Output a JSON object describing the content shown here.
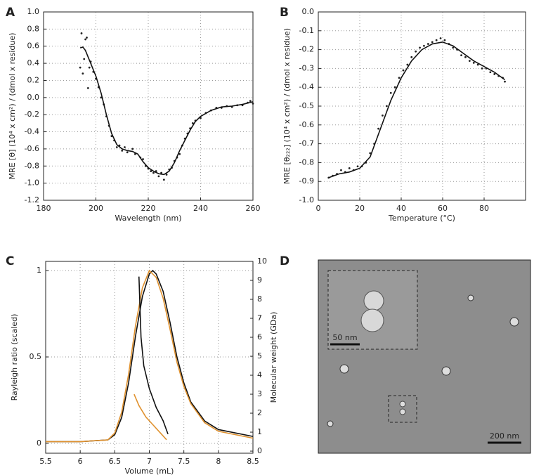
{
  "chart_data": [
    {
      "type": "line",
      "panel_label": "A",
      "xlabel": "Wavelength (nm)",
      "ylabel": "MRE [θ] (10⁴ x cm²) / (dmol x residue)",
      "xlim": [
        180,
        260
      ],
      "xticks": [
        180,
        200,
        220,
        240,
        260
      ],
      "ylim": [
        -1.2,
        1.0
      ],
      "yticks": [
        {
          "value": 1.0,
          "label": "1.0"
        },
        0.8,
        0.6,
        0.4,
        0.2,
        {
          "value": 0.0,
          "label": "0.0"
        },
        -0.2,
        -0.4,
        -0.6,
        -0.8,
        {
          "value": -1.0,
          "label": "-1.0"
        },
        -1.2
      ],
      "grid": true,
      "frame": true,
      "series": [
        {
          "style": "points",
          "color": "#222222",
          "x": [
            194,
            194.5,
            195,
            195.5,
            196,
            196.5,
            197,
            197.5,
            198,
            199,
            200,
            201,
            202,
            203,
            204,
            205,
            206,
            207,
            208,
            209,
            210,
            211,
            212,
            214,
            215,
            217,
            218,
            219,
            220,
            221,
            222,
            223,
            224,
            225,
            226,
            227,
            228,
            229,
            230,
            231,
            232,
            233,
            234,
            235,
            236,
            237,
            238,
            240,
            242,
            244,
            246,
            248,
            250,
            252,
            254,
            256,
            258,
            259,
            260
          ],
          "values": [
            0.35,
            0.75,
            0.28,
            0.45,
            0.68,
            0.7,
            0.11,
            0.35,
            0.42,
            0.3,
            0.22,
            0.12,
            0.0,
            -0.08,
            -0.22,
            -0.33,
            -0.45,
            -0.5,
            -0.58,
            -0.56,
            -0.62,
            -0.58,
            -0.64,
            -0.6,
            -0.66,
            -0.7,
            -0.72,
            -0.8,
            -0.83,
            -0.86,
            -0.88,
            -0.86,
            -0.92,
            -0.88,
            -0.96,
            -0.9,
            -0.84,
            -0.82,
            -0.74,
            -0.7,
            -0.66,
            -0.56,
            -0.48,
            -0.42,
            -0.36,
            -0.3,
            -0.27,
            -0.24,
            -0.18,
            -0.15,
            -0.12,
            -0.12,
            -0.1,
            -0.11,
            -0.09,
            -0.09,
            -0.06,
            -0.04,
            -0.07
          ]
        },
        {
          "style": "line",
          "color": "#111111",
          "x": [
            194,
            195,
            196,
            198,
            200,
            202,
            204,
            206,
            208,
            210,
            212,
            214,
            216,
            218,
            220,
            222,
            224,
            226,
            228,
            230,
            232,
            234,
            236,
            238,
            240,
            244,
            248,
            252,
            256,
            260
          ],
          "values": [
            0.58,
            0.59,
            0.55,
            0.4,
            0.25,
            0.05,
            -0.2,
            -0.42,
            -0.55,
            -0.6,
            -0.62,
            -0.63,
            -0.66,
            -0.75,
            -0.82,
            -0.86,
            -0.89,
            -0.9,
            -0.86,
            -0.76,
            -0.62,
            -0.5,
            -0.38,
            -0.28,
            -0.22,
            -0.15,
            -0.11,
            -0.1,
            -0.08,
            -0.05
          ]
        }
      ]
    },
    {
      "type": "line",
      "panel_label": "B",
      "xlabel": "Temperature (°C)",
      "ylabel": "MRE [θ₂₂₂] (10⁴ x cm²) / (dmol x residue)",
      "xlim": [
        0,
        100
      ],
      "xticks": [
        0,
        20,
        40,
        60,
        80
      ],
      "ylim": [
        -1.0,
        0.0
      ],
      "yticks": [
        {
          "value": 0.0,
          "label": "0.0"
        },
        -0.1,
        -0.2,
        -0.3,
        -0.4,
        -0.5,
        -0.6,
        -0.7,
        -0.8,
        -0.9,
        {
          "value": -1.0,
          "label": "-1.0"
        }
      ],
      "grid": true,
      "frame": true,
      "series": [
        {
          "style": "points",
          "color": "#222222",
          "x": [
            5,
            7,
            9,
            11,
            13,
            15,
            17,
            19,
            21,
            23,
            25,
            27,
            29,
            31,
            33,
            35,
            37,
            39,
            41,
            43,
            45,
            47,
            49,
            51,
            53,
            55,
            57,
            59,
            61,
            63,
            65,
            67,
            69,
            71,
            73,
            75,
            77,
            79,
            81,
            83,
            85,
            87,
            89,
            90
          ],
          "values": [
            -0.88,
            -0.87,
            -0.86,
            -0.84,
            -0.85,
            -0.83,
            -0.84,
            -0.82,
            -0.82,
            -0.8,
            -0.75,
            -0.7,
            -0.62,
            -0.55,
            -0.5,
            -0.43,
            -0.4,
            -0.35,
            -0.31,
            -0.28,
            -0.24,
            -0.21,
            -0.19,
            -0.18,
            -0.17,
            -0.16,
            -0.15,
            -0.14,
            -0.15,
            -0.17,
            -0.19,
            -0.2,
            -0.23,
            -0.24,
            -0.26,
            -0.27,
            -0.28,
            -0.3,
            -0.3,
            -0.32,
            -0.33,
            -0.34,
            -0.35,
            -0.37
          ]
        },
        {
          "style": "line",
          "color": "#111111",
          "x": [
            5,
            10,
            15,
            20,
            25,
            30,
            35,
            40,
            45,
            50,
            55,
            60,
            65,
            70,
            75,
            80,
            85,
            90
          ],
          "values": [
            -0.88,
            -0.86,
            -0.85,
            -0.83,
            -0.77,
            -0.62,
            -0.47,
            -0.35,
            -0.26,
            -0.2,
            -0.17,
            -0.16,
            -0.18,
            -0.22,
            -0.26,
            -0.29,
            -0.32,
            -0.36
          ]
        }
      ]
    },
    {
      "type": "line",
      "panel_label": "C",
      "xlabel": "Volume (mL)",
      "ylabel": "Rayleigh ratio (scaled)",
      "y2label": "Molecular weight (GDa)",
      "xlim": [
        5.5,
        8.5
      ],
      "xticks": [
        5.5,
        6,
        6.5,
        7,
        7.5,
        8,
        8.5
      ],
      "ylim": [
        -0.057,
        1.053
      ],
      "yticks": [
        0,
        0.5,
        1
      ],
      "y2lim": [
        -0.11,
        10.0
      ],
      "y2ticks": [
        0,
        1,
        2,
        3,
        4,
        5,
        6,
        7,
        8,
        9,
        10
      ],
      "grid": true,
      "frame": true,
      "series": [
        {
          "style": "line",
          "color": "#111111",
          "x": [
            5.5,
            6.0,
            6.4,
            6.5,
            6.6,
            6.7,
            6.8,
            6.9,
            7.0,
            7.05,
            7.1,
            7.2,
            7.3,
            7.4,
            7.5,
            7.6,
            7.8,
            8.0,
            8.5
          ],
          "values": [
            0.01,
            0.01,
            0.02,
            0.05,
            0.15,
            0.35,
            0.62,
            0.85,
            0.98,
            1.0,
            0.98,
            0.88,
            0.7,
            0.5,
            0.35,
            0.24,
            0.13,
            0.08,
            0.04
          ]
        },
        {
          "style": "line",
          "color": "#e0922f",
          "x": [
            5.5,
            6.0,
            6.4,
            6.5,
            6.6,
            6.7,
            6.8,
            6.9,
            7.0,
            7.1,
            7.2,
            7.3,
            7.4,
            7.5,
            7.6,
            7.8,
            8.0,
            8.5
          ],
          "values": [
            0.01,
            0.01,
            0.02,
            0.06,
            0.18,
            0.4,
            0.68,
            0.9,
            1.0,
            0.96,
            0.84,
            0.66,
            0.47,
            0.33,
            0.23,
            0.12,
            0.07,
            0.03
          ]
        },
        {
          "style": "line",
          "color": "#111111",
          "axis": "y2",
          "x": [
            6.85,
            6.88,
            6.92,
            7.0,
            7.1,
            7.2,
            7.27
          ],
          "values": [
            9.2,
            6.0,
            4.5,
            3.3,
            2.3,
            1.6,
            0.9
          ]
        },
        {
          "style": "line",
          "color": "#e0922f",
          "axis": "y2",
          "x": [
            6.78,
            6.85,
            6.95,
            7.05,
            7.15,
            7.25
          ],
          "values": [
            3.0,
            2.4,
            1.8,
            1.4,
            1.0,
            0.6
          ]
        }
      ]
    }
  ],
  "image_panel": {
    "panel_label": "D",
    "inset_scale_label": "50 nm",
    "scale_label": "200 nm"
  }
}
